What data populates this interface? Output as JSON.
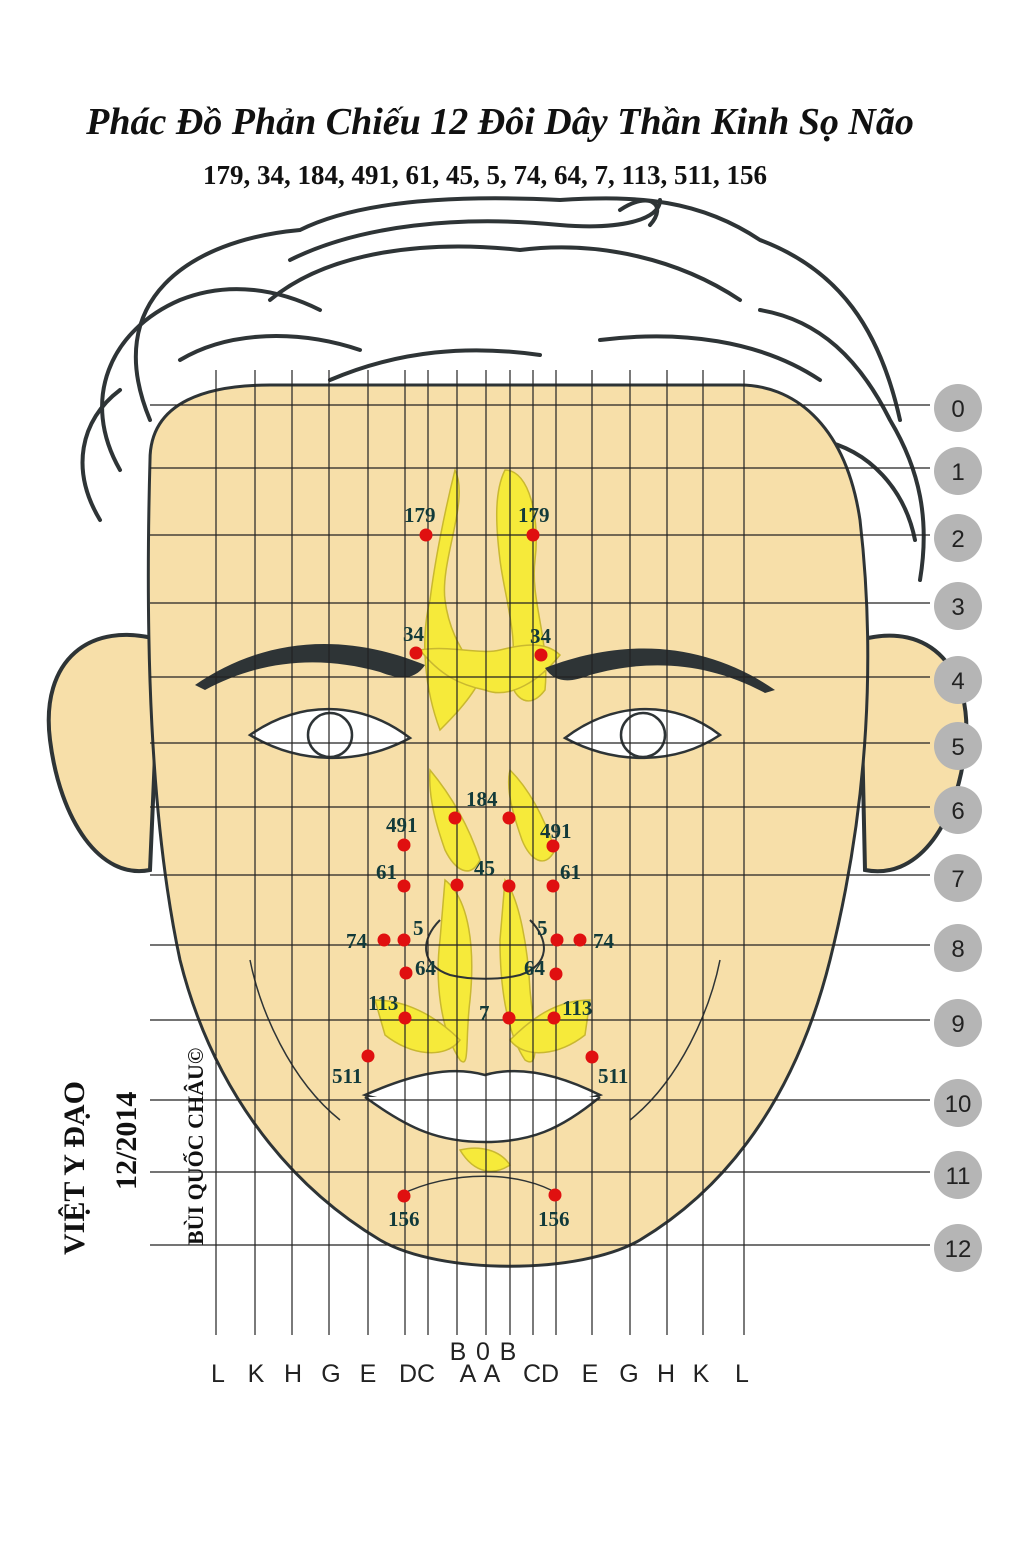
{
  "title": "Phác Đồ Phản Chiếu 12 Đôi Dây Thần Kinh Sọ Não",
  "subtitle": "179, 34, 184, 491, 61, 45, 5, 74, 64, 7, 113, 511, 156",
  "side_text": {
    "org": "VIỆT Y ĐẠO",
    "date": "12/2014",
    "author": "BÙI QUỐC CHÂU©"
  },
  "row_labels": [
    "0",
    "1",
    "2",
    "3",
    "4",
    "5",
    "6",
    "7",
    "8",
    "9",
    "10",
    "11",
    "12"
  ],
  "column_labels": [
    "L",
    "K",
    "H",
    "G",
    "E",
    "DC",
    "A",
    "A",
    "CD",
    "E",
    "G",
    "H",
    "K",
    "L"
  ],
  "column_labels_top": [
    "B",
    "0",
    "B"
  ],
  "points": [
    {
      "label": "179",
      "side": "left"
    },
    {
      "label": "179",
      "side": "right"
    },
    {
      "label": "34",
      "side": "left"
    },
    {
      "label": "34",
      "side": "right"
    },
    {
      "label": "184",
      "side": "center"
    },
    {
      "label": "491",
      "side": "left"
    },
    {
      "label": "491",
      "side": "right"
    },
    {
      "label": "61",
      "side": "left"
    },
    {
      "label": "61",
      "side": "right"
    },
    {
      "label": "45",
      "side": "center"
    },
    {
      "label": "74",
      "side": "left"
    },
    {
      "label": "5",
      "side": "left"
    },
    {
      "label": "5",
      "side": "right"
    },
    {
      "label": "74",
      "side": "right"
    },
    {
      "label": "64",
      "side": "left"
    },
    {
      "label": "64",
      "side": "right"
    },
    {
      "label": "113",
      "side": "left"
    },
    {
      "label": "7",
      "side": "center"
    },
    {
      "label": "113",
      "side": "right"
    },
    {
      "label": "511",
      "side": "left"
    },
    {
      "label": "511",
      "side": "right"
    },
    {
      "label": "156",
      "side": "left"
    },
    {
      "label": "156",
      "side": "right"
    }
  ],
  "colors": {
    "face": "#f7dfa9",
    "nerve": "#f6ea3a",
    "point": "#e01010",
    "row_badge": "#b5b5b5",
    "grid": "#222222",
    "hair": "#2e3436"
  }
}
